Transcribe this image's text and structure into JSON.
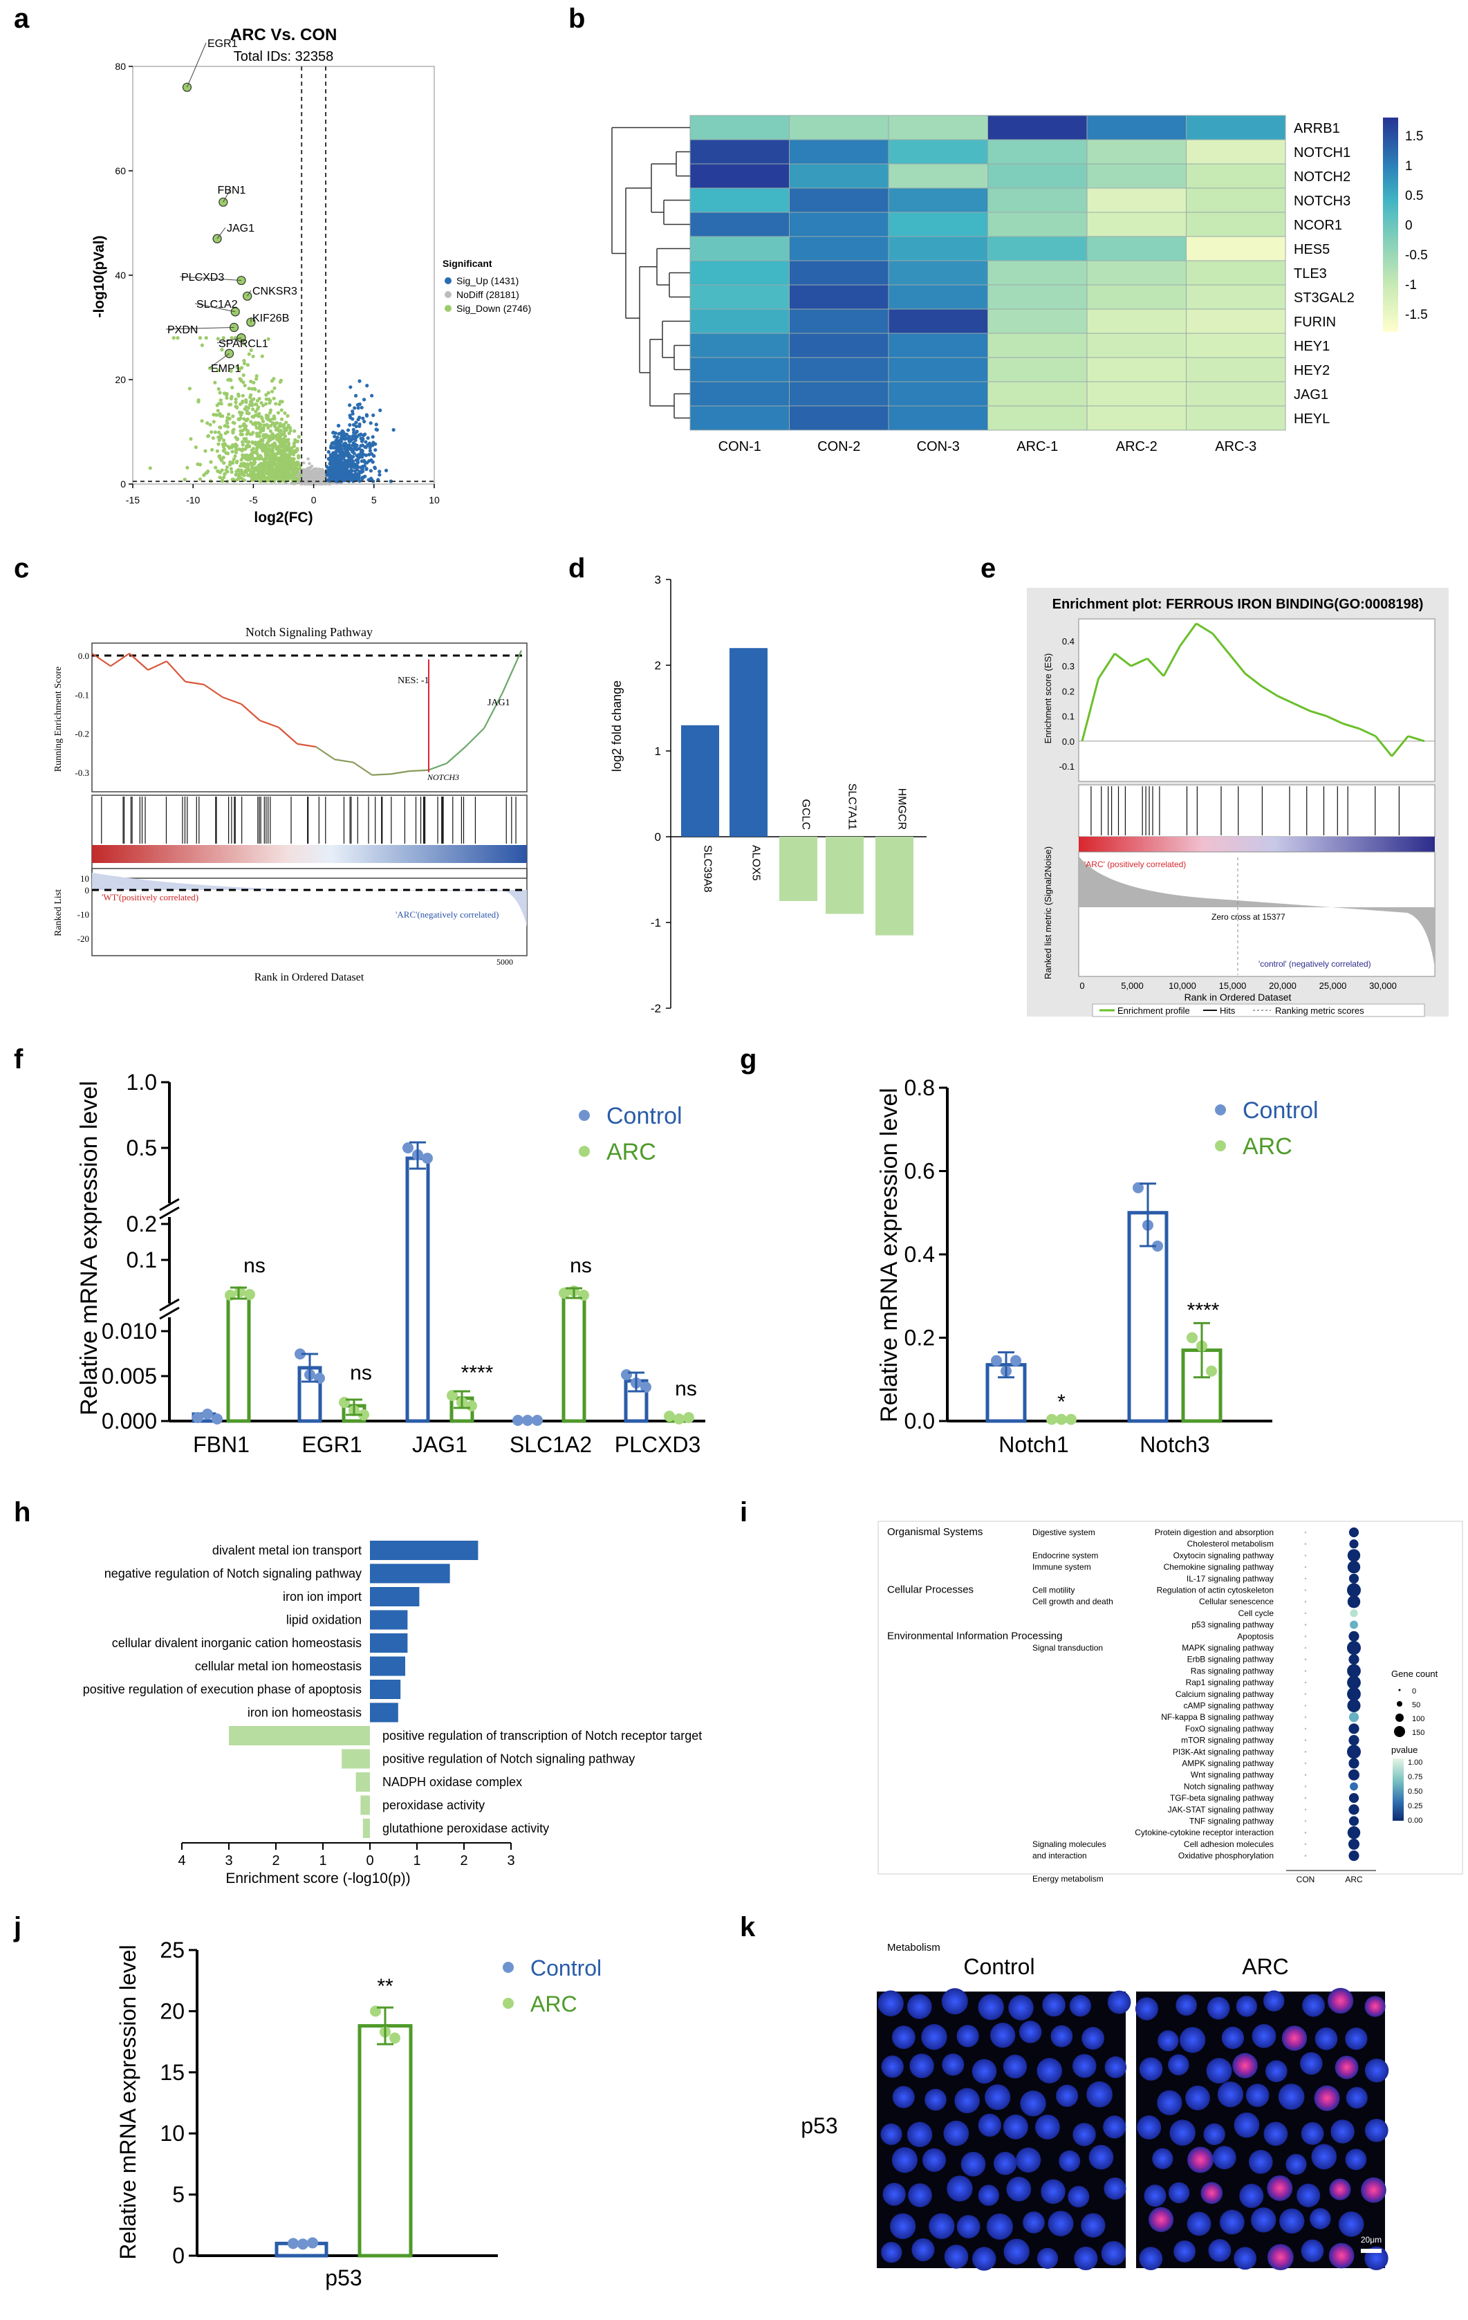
{
  "panel_letters": [
    "a",
    "b",
    "c",
    "d",
    "e",
    "f",
    "g",
    "h",
    "i",
    "j",
    "k"
  ],
  "colors": {
    "control": "#2a5ca8",
    "control_dot": "#6f93cf",
    "arc": "#4f9a2a",
    "arc_dot": "#a8d87e",
    "up": "#2b6cb0",
    "down": "#9ccc6b",
    "nodiff": "#bdbdbd",
    "bar_blue": "#2a66b1",
    "bar_green": "#b8dda1"
  },
  "chart_data": [
    {
      "id": "a",
      "type": "scatter",
      "title": "ARC Vs. CON",
      "subtitle": "Total IDs: 32358",
      "xlabel": "log2(FC)",
      "ylabel": "-log10(pVal)",
      "xlim": [
        -15,
        10
      ],
      "ylim": [
        0,
        80
      ],
      "xticks": [
        -15,
        -10,
        -5,
        0,
        5,
        10
      ],
      "yticks": [
        0,
        20,
        40,
        60,
        80
      ],
      "thresholds": {
        "x": [
          -1,
          1
        ],
        "y": 1.3
      },
      "legend": {
        "title": "Significant",
        "entries": [
          "Sig_Up (1431)",
          "NoDiff (28181)",
          "Sig_Down (2746)"
        ]
      },
      "labeled_genes": [
        {
          "name": "EGR1",
          "x": -10.5,
          "y": 76
        },
        {
          "name": "FBN1",
          "x": -7.5,
          "y": 54
        },
        {
          "name": "JAG1",
          "x": -8.0,
          "y": 47
        },
        {
          "name": "PLCXD3",
          "x": -6.0,
          "y": 39
        },
        {
          "name": "CNKSR3",
          "x": -5.5,
          "y": 36
        },
        {
          "name": "SLC1A2",
          "x": -6.5,
          "y": 33
        },
        {
          "name": "KIF26B",
          "x": -5.2,
          "y": 31
        },
        {
          "name": "PXDN",
          "x": -6.6,
          "y": 30
        },
        {
          "name": "SPARCL1",
          "x": -6.0,
          "y": 28
        },
        {
          "name": "EMP1",
          "x": -7.0,
          "y": 25
        }
      ]
    },
    {
      "id": "b",
      "type": "heatmap",
      "columns": [
        "CON-1",
        "CON-2",
        "CON-3",
        "ARC-1",
        "ARC-2",
        "ARC-3"
      ],
      "rows": [
        "ARRB1",
        "NOTCH1",
        "NOTCH2",
        "NOTCH3",
        "NCOR1",
        "HES5",
        "TLE3",
        "ST3GAL2",
        "FURIN",
        "HEY1",
        "HEY2",
        "JAG1",
        "HEYL"
      ],
      "values": [
        [
          -0.2,
          -0.5,
          -0.6,
          1.7,
          1.0,
          0.6
        ],
        [
          1.6,
          1.0,
          0.3,
          -0.3,
          -0.7,
          -1.3
        ],
        [
          1.7,
          0.7,
          -0.6,
          -0.2,
          -0.6,
          -1.0
        ],
        [
          0.4,
          1.2,
          0.8,
          -0.4,
          -1.3,
          -1.0
        ],
        [
          1.2,
          1.0,
          0.4,
          -0.5,
          -1.2,
          -1.0
        ],
        [
          0.0,
          1.0,
          0.6,
          0.2,
          -0.3,
          -1.6
        ],
        [
          0.4,
          1.3,
          0.8,
          -0.6,
          -0.8,
          -1.0
        ],
        [
          0.3,
          1.5,
          0.9,
          -0.6,
          -0.9,
          -1.1
        ],
        [
          0.5,
          1.2,
          1.6,
          -0.7,
          -1.2,
          -1.3
        ],
        [
          0.9,
          1.3,
          1.0,
          -0.9,
          -1.1,
          -1.2
        ],
        [
          1.0,
          1.2,
          1.0,
          -0.9,
          -1.2,
          -1.1
        ],
        [
          1.1,
          1.2,
          1.0,
          -1.0,
          -1.2,
          -1.1
        ],
        [
          1.0,
          1.3,
          1.0,
          -1.0,
          -1.2,
          -1.1
        ]
      ],
      "colorbar_ticks": [
        "1.5",
        "1",
        "0.5",
        "0",
        "-0.5",
        "-1",
        "-1.5"
      ],
      "colorbar_range": [
        -1.8,
        1.8
      ]
    },
    {
      "id": "c",
      "type": "line",
      "title": "Notch Signaling Pathway",
      "ylabel": "Running Enrichment Score",
      "ylabel2": "Ranked List",
      "xlabel": "Rank in Ordered Dataset",
      "yticks": [
        "0.0",
        "-0.1",
        "-0.2",
        "-0.3"
      ],
      "ranked_yticks": [
        "10",
        "0",
        "-10",
        "-20"
      ],
      "xtick": "5000",
      "annotations": [
        "NES: -1",
        "NOTCH3",
        "JAG1"
      ],
      "left_label": "'WT'(positively correlated)",
      "right_label": "'ARC'(negatively correlated)",
      "es_curve": [
        0,
        -0.02,
        0.0,
        -0.03,
        -0.02,
        -0.06,
        -0.08,
        -0.1,
        -0.13,
        -0.16,
        -0.19,
        -0.22,
        -0.24,
        -0.26,
        -0.28,
        -0.3,
        -0.31,
        -0.29,
        -0.3,
        -0.27,
        -0.24,
        -0.18,
        -0.1,
        0.02
      ]
    },
    {
      "id": "d",
      "type": "bar",
      "ylabel": "log2 fold change",
      "ylim": [
        -2,
        3
      ],
      "yticks": [
        -2,
        -1,
        0,
        1,
        2,
        3
      ],
      "categories": [
        "SLC39A8",
        "ALOX5",
        "GCLC",
        "SLC7A11",
        "HMGCR"
      ],
      "values": [
        1.3,
        2.2,
        -0.75,
        -0.9,
        -1.15
      ]
    },
    {
      "id": "e",
      "type": "line",
      "title": "Enrichment plot: FERROUS IRON BINDING(GO:0008198)",
      "ylabel": "Enrichment score (ES)",
      "ylabel2": "Ranked list metric (Signal2Noise)",
      "xlabel": "Rank in Ordered Dataset",
      "xticks": [
        "0",
        "5,000",
        "10,000",
        "15,000",
        "20,000",
        "25,000",
        "30,000"
      ],
      "yticks": [
        "0.4",
        "0.3",
        "0.2",
        "0.1",
        "0.0",
        "-0.1"
      ],
      "left_label": "'ARC' (positively correlated)",
      "right_label": "'control' (negatively correlated)",
      "zero_cross": "Zero cross at 15377",
      "legend": [
        "Enrichment profile",
        "Hits",
        "Ranking metric scores"
      ],
      "es_curve": [
        0.0,
        0.25,
        0.35,
        0.3,
        0.33,
        0.26,
        0.38,
        0.47,
        0.43,
        0.35,
        0.27,
        0.22,
        0.18,
        0.15,
        0.12,
        0.1,
        0.07,
        0.05,
        0.02,
        -0.06,
        0.02,
        0.0
      ]
    },
    {
      "id": "f",
      "type": "bar",
      "ylabel": "Relative mRNA expression level",
      "categories": [
        "FBN1",
        "EGR1",
        "JAG1",
        "SLC1A2",
        "PLCXD3"
      ],
      "series": [
        {
          "name": "Control",
          "values": [
            0.001,
            0.0058,
            0.45,
            0.0001,
            0.0043
          ]
        },
        {
          "name": "ARC",
          "values": [
            0.08,
            0.0019,
            0.0025,
            0.08,
            0.0005
          ]
        }
      ],
      "significance": [
        "ns",
        "ns",
        "****",
        "ns",
        "ns"
      ],
      "axis_breaks": true,
      "yticks_upper": [
        "1.0",
        "0.5"
      ],
      "yticks_middle": [
        "0.2",
        "0.1"
      ],
      "yticks_lower": [
        "0.010",
        "0.005",
        "0.000"
      ]
    },
    {
      "id": "g",
      "type": "bar",
      "ylabel": "Relative mRNA expression level",
      "ylim": [
        0,
        0.8
      ],
      "yticks": [
        "0.0",
        "0.2",
        "0.4",
        "0.6",
        "0.8"
      ],
      "categories": [
        "Notch1",
        "Notch3"
      ],
      "series": [
        {
          "name": "Control",
          "values": [
            0.135,
            0.5
          ]
        },
        {
          "name": "ARC",
          "values": [
            0.004,
            0.17
          ]
        }
      ],
      "significance": [
        "*",
        "****"
      ]
    },
    {
      "id": "h",
      "type": "bar",
      "orientation": "horizontal",
      "xlabel": "Enrichment score (-log10(p))",
      "xticks": [
        "4",
        "3",
        "2",
        "1",
        "0",
        "1",
        "2",
        "3"
      ],
      "terms": [
        {
          "label": "divalent metal ion transport",
          "value": 2.3,
          "group": "up"
        },
        {
          "label": "negative regulation of Notch signaling pathway",
          "value": 1.7,
          "group": "up"
        },
        {
          "label": "iron ion import",
          "value": 1.05,
          "group": "up"
        },
        {
          "label": "lipid oxidation",
          "value": 0.8,
          "group": "up"
        },
        {
          "label": "cellular divalent inorganic cation homeostasis",
          "value": 0.8,
          "group": "up"
        },
        {
          "label": "cellular metal ion homeostasis",
          "value": 0.75,
          "group": "up"
        },
        {
          "label": "positive regulation of execution phase of apoptosis",
          "value": 0.65,
          "group": "up"
        },
        {
          "label": "iron ion homeostasis",
          "value": 0.6,
          "group": "up"
        },
        {
          "label": "positive regulation of transcription of Notch receptor target",
          "value": 3.0,
          "group": "down"
        },
        {
          "label": "positive regulation of Notch signaling pathway",
          "value": 0.6,
          "group": "down"
        },
        {
          "label": "NADPH oxidase complex",
          "value": 0.3,
          "group": "down"
        },
        {
          "label": "peroxidase activity",
          "value": 0.2,
          "group": "down"
        },
        {
          "label": "glutathione peroxidase activity",
          "value": 0.15,
          "group": "down"
        }
      ]
    },
    {
      "id": "i",
      "type": "scatter",
      "columns": [
        "CON",
        "ARC"
      ],
      "categories": [
        {
          "label": "Organismal Systems",
          "row": 0
        },
        {
          "label": "Cellular Processes",
          "row": 5
        },
        {
          "label": "Environmental Information Processing",
          "row": 9
        },
        {
          "label": "Metabolism",
          "row": 36
        }
      ],
      "subcategories": [
        {
          "label": "Digestive system",
          "row": 0
        },
        {
          "label": "Endocrine system",
          "row": 2
        },
        {
          "label": "Immune system",
          "row": 3
        },
        {
          "label": "Cell motility",
          "row": 5
        },
        {
          "label": "Cell growth and death",
          "row": 6
        },
        {
          "label": "Signal transduction",
          "row": 10
        },
        {
          "label": "Signaling molecules",
          "row": 27
        },
        {
          "label": "and interaction",
          "row": 28
        },
        {
          "label": "Energy metabolism",
          "row": 30
        }
      ],
      "pathways": [
        {
          "name": "Protein digestion and absorption",
          "size": 50,
          "p": 0.05
        },
        {
          "name": "Cholesterol metabolism",
          "size": 40,
          "p": 0.1
        },
        {
          "name": "Oxytocin signaling pathway",
          "size": 100,
          "p": 0.05
        },
        {
          "name": "Chemokine signaling pathway",
          "size": 100,
          "p": 0.1
        },
        {
          "name": "IL-17 signaling pathway",
          "size": 50,
          "p": 0.15
        },
        {
          "name": "Regulation of actin cytoskeleton",
          "size": 130,
          "p": 0.05
        },
        {
          "name": "Cellular senescence",
          "size": 100,
          "p": 0.1
        },
        {
          "name": "Cell cycle",
          "size": 25,
          "p": 0.85
        },
        {
          "name": "p53 signaling pathway",
          "size": 30,
          "p": 0.7
        },
        {
          "name": "Apoptosis",
          "size": 60,
          "p": 0.2
        },
        {
          "name": "MAPK signaling pathway",
          "size": 150,
          "p": 0.02
        },
        {
          "name": "ErbB signaling pathway",
          "size": 60,
          "p": 0.1
        },
        {
          "name": "Ras signaling pathway",
          "size": 120,
          "p": 0.05
        },
        {
          "name": "Rap1 signaling pathway",
          "size": 120,
          "p": 0.05
        },
        {
          "name": "Calcium signaling pathway",
          "size": 120,
          "p": 0.05
        },
        {
          "name": "cAMP signaling pathway",
          "size": 110,
          "p": 0.05
        },
        {
          "name": "NF-kappa B signaling pathway",
          "size": 50,
          "p": 0.5
        },
        {
          "name": "FoxO signaling pathway",
          "size": 60,
          "p": 0.1
        },
        {
          "name": "mTOR signaling pathway",
          "size": 60,
          "p": 0.1
        },
        {
          "name": "PI3K-Akt signaling pathway",
          "size": 160,
          "p": 0.05
        },
        {
          "name": "AMPK signaling pathway",
          "size": 60,
          "p": 0.1
        },
        {
          "name": "Wnt signaling pathway",
          "size": 70,
          "p": 0.1
        },
        {
          "name": "Notch signaling pathway",
          "size": 30,
          "p": 0.3
        },
        {
          "name": "TGF-beta signaling pathway",
          "size": 50,
          "p": 0.1
        },
        {
          "name": "JAK-STAT signaling pathway",
          "size": 60,
          "p": 0.1
        },
        {
          "name": "TNF signaling pathway",
          "size": 50,
          "p": 0.15
        },
        {
          "name": "Cytokine-cytokine receptor interaction",
          "size": 100,
          "p": 0.1
        },
        {
          "name": "Cell adhesion molecules",
          "size": 70,
          "p": 0.1
        },
        {
          "name": "Oxidative phosphorylation",
          "size": 60,
          "p": 0.2
        }
      ],
      "size_legend": {
        "title": "Gene count",
        "labels": [
          "0",
          "50",
          "100",
          "150"
        ]
      },
      "color_legend": {
        "title": "pvalue",
        "labels": [
          "1.00",
          "0.75",
          "0.50",
          "0.25",
          "0.00"
        ]
      }
    },
    {
      "id": "j",
      "type": "bar",
      "ylabel": "Relative mRNA expression level",
      "ylim": [
        0,
        25
      ],
      "yticks": [
        "0",
        "5",
        "10",
        "15",
        "20",
        "25"
      ],
      "categories": [
        "p53"
      ],
      "series": [
        {
          "name": "Control",
          "values": [
            1.0
          ]
        },
        {
          "name": "ARC",
          "values": [
            18.8
          ]
        }
      ],
      "significance": [
        "**"
      ]
    }
  ],
  "k": {
    "label_left": "Control",
    "label_right": "ARC",
    "row_label": "p53",
    "scale_bar": "20μm"
  }
}
